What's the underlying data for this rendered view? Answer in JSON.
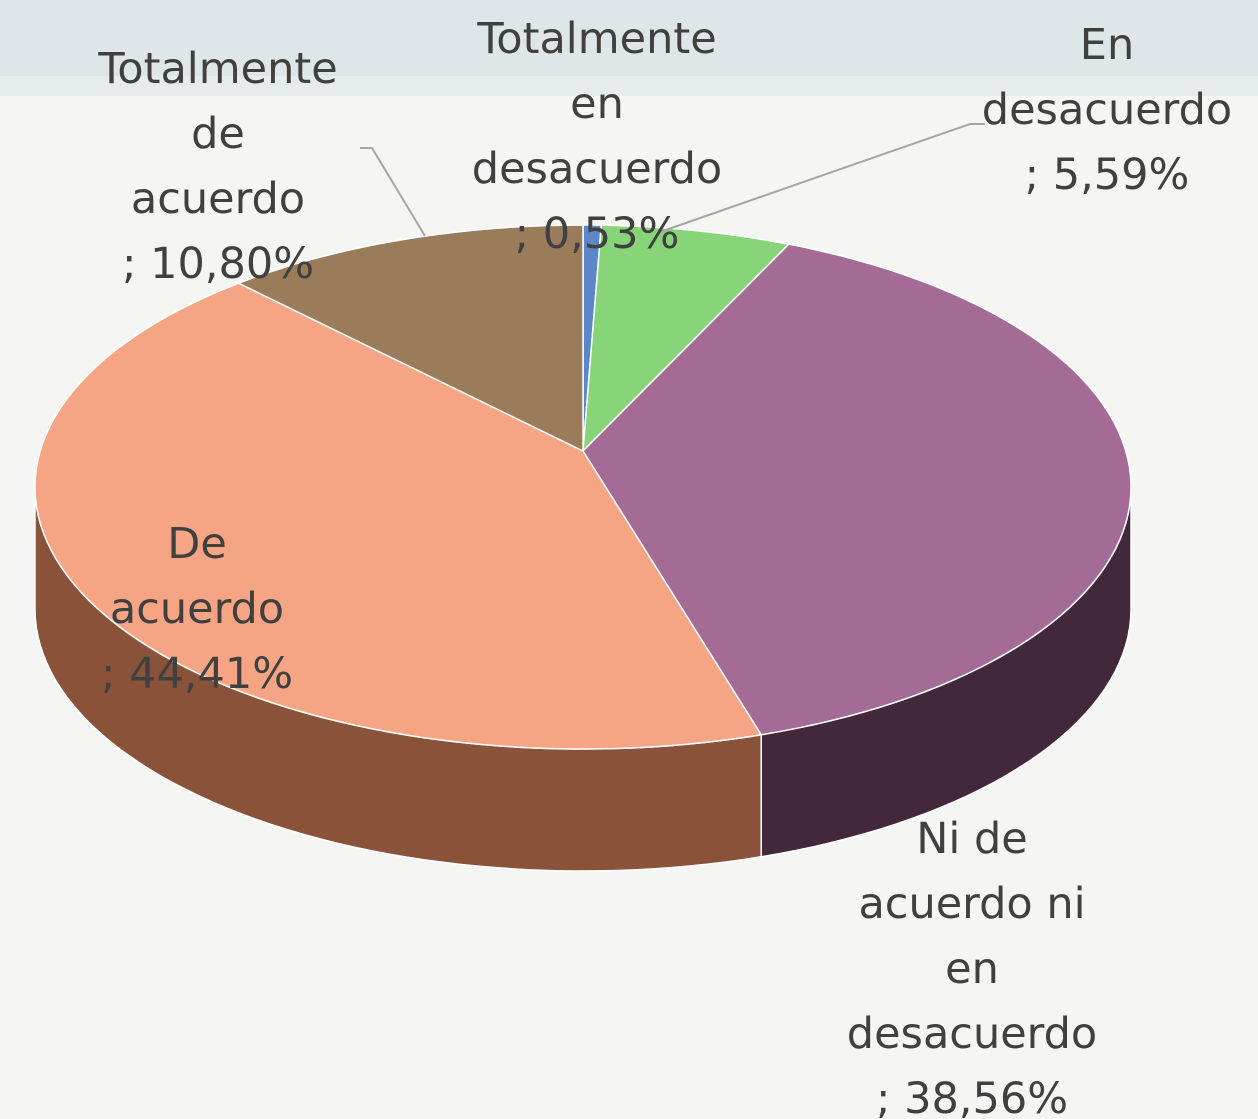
{
  "chart_data": {
    "type": "pie3d",
    "categories": [
      "Totalmente en desacuerdo",
      "En desacuerdo",
      "Ni de acuerdo ni en desacuerdo",
      "De acuerdo",
      "Totalmente de acuerdo"
    ],
    "values": [
      0.53,
      5.59,
      38.56,
      44.41,
      10.8
    ],
    "value_labels": [
      "; 0,53%",
      "; 5,59%",
      "; 38,56%",
      "; 44,41%",
      "; 10,80%"
    ],
    "colors": [
      "#5b86c9",
      "#88d478",
      "#a36b95",
      "#f5a584",
      "#9a7b5a"
    ],
    "side_colors": [
      "#2e4a78",
      "#4d7d42",
      "#43283c",
      "#8a5238",
      "#5a4630"
    ]
  }
}
